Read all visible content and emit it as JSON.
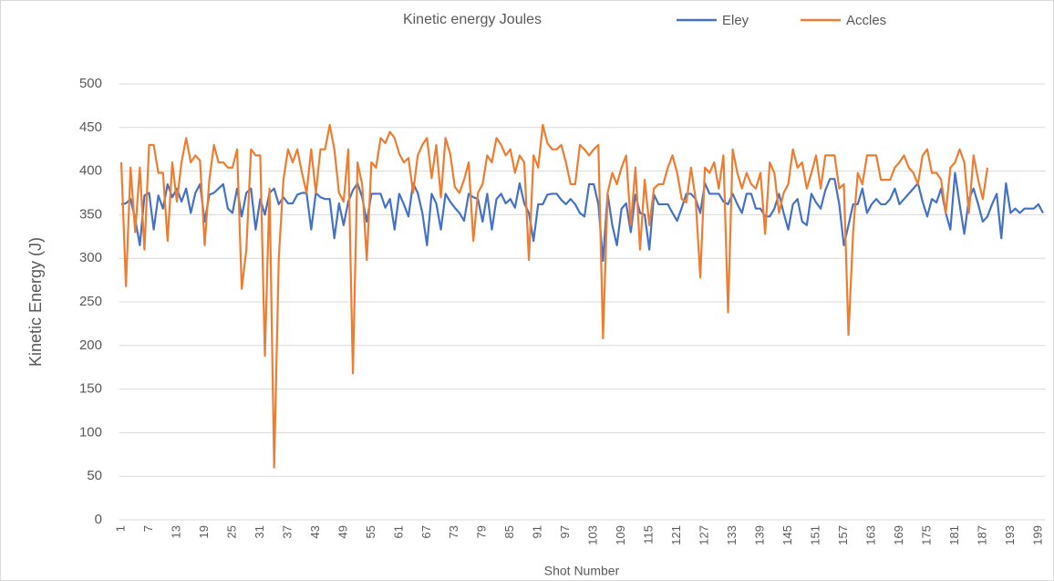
{
  "chart_data": {
    "type": "line",
    "title": "Kinetic energy Joules",
    "x_label": "Shot Number",
    "y_label": "Kinetic Energy (J)",
    "categories": [
      1,
      null,
      null,
      null,
      null,
      null,
      7,
      null,
      null,
      null,
      null,
      null,
      13,
      null,
      null,
      null,
      null,
      null,
      19,
      null,
      null,
      null,
      null,
      null,
      25,
      null,
      null,
      null,
      null,
      null,
      31,
      null,
      null,
      null,
      null,
      null,
      37,
      null,
      null,
      null,
      null,
      null,
      43,
      null,
      null,
      null,
      null,
      null,
      49,
      null,
      null,
      null,
      null,
      null,
      55,
      null,
      null,
      null,
      null,
      null,
      61,
      null,
      null,
      null,
      null,
      null,
      67,
      null,
      null,
      null,
      null,
      null,
      73,
      null,
      null,
      null,
      null,
      null,
      79,
      null,
      null,
      null,
      null,
      null,
      85,
      null,
      null,
      null,
      null,
      null,
      91,
      null,
      null,
      null,
      null,
      null,
      97,
      null,
      null,
      null,
      null,
      null,
      103,
      null,
      null,
      null,
      null,
      null,
      109,
      null,
      null,
      null,
      null,
      null,
      115,
      null,
      null,
      null,
      null,
      null,
      121,
      null,
      null,
      null,
      null,
      null,
      127,
      null,
      null,
      null,
      null,
      null,
      133,
      null,
      null,
      null,
      null,
      null,
      139,
      null,
      null,
      null,
      null,
      null,
      145,
      null,
      null,
      null,
      null,
      null,
      151,
      null,
      null,
      null,
      null,
      null,
      157,
      null,
      null,
      null,
      null,
      null,
      163,
      null,
      null,
      null,
      null,
      null,
      169,
      null,
      null,
      null,
      null,
      null,
      175,
      null,
      null,
      null,
      null,
      null,
      181,
      null,
      null,
      null,
      null,
      null,
      187,
      null,
      null,
      null,
      null,
      null,
      193,
      null,
      null,
      null,
      null,
      null,
      199,
      null
    ],
    "series": [
      {
        "name": "Eley",
        "color": "#4472c4",
        "values": [
          362,
          363,
          368,
          345,
          315,
          372,
          375,
          333,
          372,
          357,
          385,
          370,
          380,
          365,
          380,
          352,
          375,
          385,
          342,
          373,
          375,
          380,
          385,
          357,
          352,
          380,
          348,
          375,
          380,
          333,
          368,
          350,
          375,
          380,
          362,
          370,
          363,
          363,
          373,
          375,
          375,
          333,
          375,
          370,
          368,
          368,
          323,
          363,
          338,
          365,
          378,
          386,
          370,
          342,
          374,
          374,
          374,
          358,
          368,
          333,
          374,
          362,
          348,
          386,
          375,
          352,
          315,
          374,
          363,
          333,
          374,
          365,
          358,
          352,
          343,
          374,
          370,
          368,
          342,
          374,
          333,
          368,
          374,
          363,
          368,
          358,
          386,
          363,
          352,
          320,
          362,
          362,
          373,
          374,
          374,
          367,
          362,
          368,
          362,
          352,
          348,
          385,
          385,
          362,
          297,
          374,
          338,
          315,
          357,
          363,
          330,
          373,
          352,
          350,
          310,
          373,
          362,
          362,
          362,
          352,
          343,
          358,
          374,
          374,
          368,
          352,
          386,
          374,
          374,
          374,
          365,
          362,
          374,
          362,
          352,
          374,
          374,
          357,
          357,
          348,
          348,
          357,
          374,
          352,
          333,
          362,
          368,
          342,
          338,
          374,
          364,
          357,
          378,
          391,
          391,
          362,
          315,
          338,
          362,
          362,
          380,
          352,
          362,
          368,
          362,
          362,
          368,
          380,
          362,
          368,
          374,
          380,
          386,
          365,
          348,
          368,
          364,
          380,
          352,
          333,
          398,
          362,
          328,
          368,
          380,
          362,
          342,
          348,
          362,
          374,
          323,
          386,
          352,
          357,
          352,
          357,
          357,
          357,
          362,
          352
        ]
      },
      {
        "name": "Accles",
        "color": "#ed7d31",
        "values": [
          410,
          268,
          404,
          330,
          404,
          310,
          430,
          430,
          398,
          398,
          320,
          410,
          365,
          410,
          438,
          410,
          418,
          412,
          315,
          390,
          430,
          410,
          410,
          404,
          404,
          425,
          265,
          310,
          425,
          418,
          418,
          188,
          380,
          60,
          300,
          390,
          425,
          410,
          425,
          398,
          375,
          425,
          375,
          425,
          425,
          453,
          425,
          375,
          365,
          425,
          168,
          410,
          385,
          298,
          410,
          404,
          438,
          432,
          445,
          438,
          420,
          410,
          415,
          375,
          418,
          430,
          438,
          392,
          430,
          370,
          438,
          420,
          382,
          375,
          390,
          410,
          320,
          375,
          385,
          418,
          410,
          438,
          430,
          418,
          425,
          398,
          418,
          410,
          298,
          418,
          404,
          453,
          432,
          425,
          425,
          430,
          410,
          385,
          385,
          430,
          425,
          418,
          425,
          430,
          208,
          375,
          398,
          385,
          404,
          418,
          338,
          404,
          310,
          390,
          338,
          380,
          385,
          385,
          404,
          418,
          398,
          368,
          364,
          404,
          368,
          278,
          404,
          398,
          410,
          380,
          418,
          238,
          425,
          398,
          380,
          398,
          385,
          380,
          398,
          328,
          410,
          398,
          352,
          375,
          385,
          425,
          404,
          410,
          380,
          398,
          418,
          380,
          418,
          418,
          418,
          380,
          385,
          212,
          330,
          398,
          385,
          418,
          418,
          418,
          390,
          390,
          390,
          404,
          410,
          418,
          404,
          398,
          385,
          418,
          425,
          398,
          398,
          390,
          352,
          404,
          410,
          425,
          410,
          352,
          418,
          390,
          368,
          404,
          null,
          null,
          null,
          null,
          null,
          null,
          null,
          null,
          null,
          null,
          null,
          null
        ]
      }
    ],
    "ylim": [
      0,
      500
    ],
    "yticks": [
      0,
      50,
      100,
      150,
      200,
      250,
      300,
      350,
      400,
      450,
      500
    ],
    "grid": true,
    "legend": "top"
  }
}
